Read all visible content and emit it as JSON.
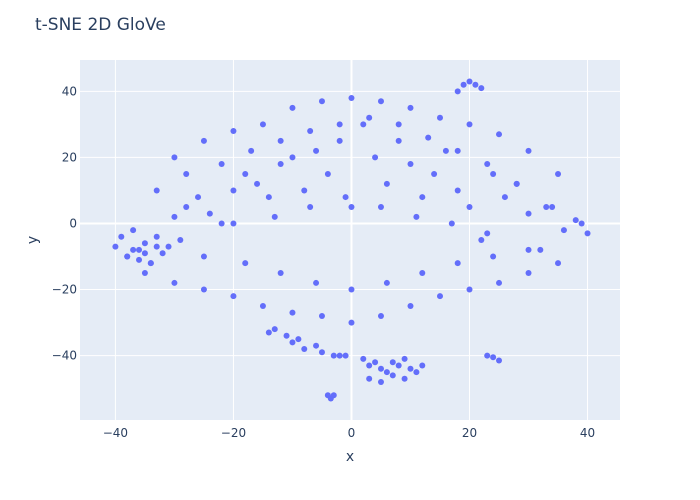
{
  "chart_data": {
    "type": "scatter",
    "title": "t-SNE 2D GloVe",
    "xlabel": "x",
    "ylabel": "y",
    "xlim": [
      -46,
      45.5
    ],
    "ylim": [
      -59.5,
      49.5
    ],
    "xticks": [
      -40,
      -20,
      0,
      20,
      40
    ],
    "yticks": [
      -40,
      -20,
      0,
      20,
      40
    ],
    "grid": true,
    "legend": "none",
    "colors": {
      "marker": "#636efa",
      "plot_bg": "#e5ecf6",
      "grid": "#ffffff",
      "text": "#2a3f5f"
    },
    "series": [
      {
        "x": [
          -40,
          -39,
          -38,
          -37,
          -36,
          -35,
          -34,
          -33,
          -32,
          -31,
          -30,
          -29,
          -28,
          -26,
          -24,
          -22,
          -20,
          -18,
          -16,
          -14,
          -12,
          -10,
          -8,
          -6,
          -4,
          -2,
          0,
          2,
          4,
          6,
          8,
          10,
          12,
          14,
          16,
          18,
          20,
          22,
          24,
          26,
          28,
          30,
          32,
          34,
          36,
          38,
          39,
          40,
          -30,
          -25,
          -20,
          -15,
          -10,
          -5,
          0,
          5,
          10,
          15,
          20,
          25,
          30,
          35,
          -35,
          -30,
          -25,
          -20,
          -15,
          -10,
          -5,
          0,
          5,
          10,
          15,
          20,
          25,
          30,
          35,
          -33,
          -28,
          -22,
          -17,
          -12,
          -7,
          -2,
          3,
          8,
          13,
          18,
          23,
          28,
          33,
          -25,
          -18,
          -12,
          -6,
          0,
          6,
          12,
          18,
          24,
          30,
          -20,
          -13,
          -7,
          -1,
          5,
          11,
          17,
          23,
          -13,
          -10,
          -8,
          -11,
          -14,
          -9,
          -6,
          -5,
          -3,
          -2,
          -1,
          2,
          3,
          4,
          5,
          6,
          7,
          8,
          9,
          10,
          11,
          12,
          3,
          5,
          7,
          9,
          -4,
          -3.5,
          -3,
          18,
          19,
          20,
          21,
          22,
          23,
          24,
          25,
          -38,
          -37,
          -36,
          -35,
          -34,
          -33
        ],
        "y": [
          -7,
          -4,
          -10,
          -2,
          -8,
          -6,
          -12,
          -4,
          -9,
          -7,
          2,
          -5,
          5,
          8,
          3,
          0,
          10,
          15,
          12,
          8,
          18,
          20,
          10,
          22,
          15,
          25,
          5,
          30,
          20,
          12,
          25,
          18,
          8,
          15,
          22,
          10,
          5,
          -5,
          15,
          8,
          12,
          3,
          -8,
          5,
          -2,
          1,
          0,
          -3,
          20,
          25,
          28,
          30,
          35,
          37,
          38,
          37,
          35,
          32,
          30,
          27,
          22,
          15,
          -15,
          -18,
          -20,
          -22,
          -25,
          -27,
          -28,
          -30,
          -28,
          -25,
          -22,
          -20,
          -18,
          -15,
          -12,
          10,
          15,
          18,
          22,
          25,
          28,
          30,
          32,
          30,
          26,
          22,
          18,
          12,
          5,
          -10,
          -12,
          -15,
          -18,
          -20,
          -18,
          -15,
          -12,
          -10,
          -8,
          0,
          2,
          5,
          8,
          5,
          2,
          0,
          -3,
          -32,
          -36,
          -38,
          -34,
          -33,
          -35,
          -37,
          -39,
          -40,
          -40,
          -40,
          -41,
          -43,
          -42,
          -44,
          -45,
          -42,
          -43,
          -41,
          -44,
          -45,
          -43,
          -47,
          -48,
          -46,
          -47,
          -52,
          -53,
          -52,
          40,
          42,
          43,
          42,
          41,
          -40,
          -40.5,
          -41.5,
          -10,
          -8,
          -11,
          -9,
          -12,
          -7
        ]
      }
    ]
  }
}
